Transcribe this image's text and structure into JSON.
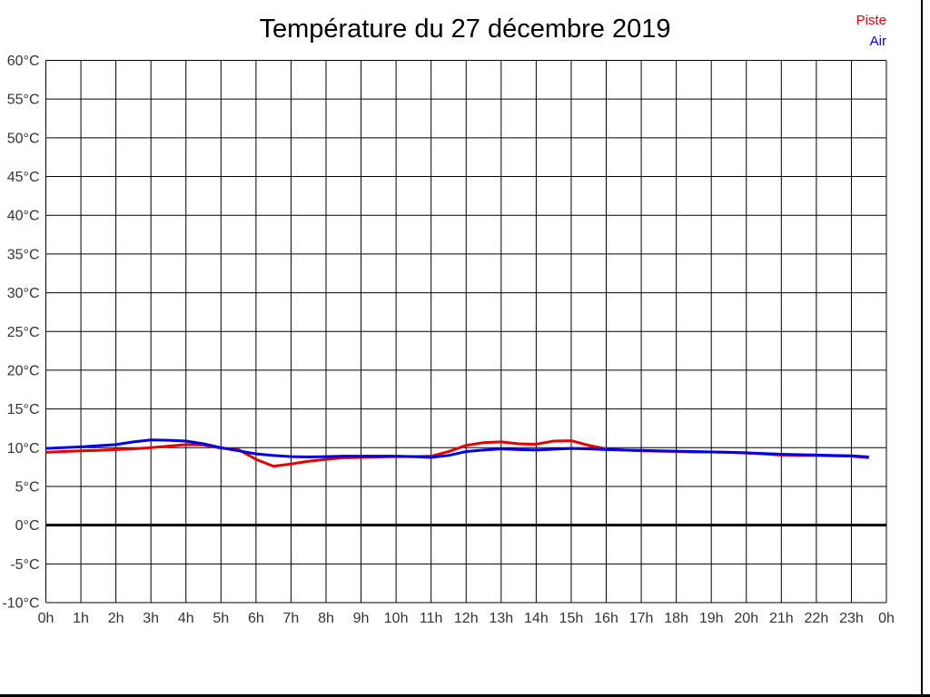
{
  "title": "Température du 27 décembre 2019",
  "legend": [
    {
      "label": "Piste",
      "color": "#e60000"
    },
    {
      "label": "Air",
      "color": "#0000e6"
    }
  ],
  "chart_data": {
    "type": "line",
    "title": "Température du 27 décembre 2019",
    "xlabel": "",
    "ylabel": "",
    "grid": true,
    "legend_position": "top-right",
    "xlim": [
      0,
      24
    ],
    "ylim": [
      -10,
      60
    ],
    "y_step": 5,
    "zero_line_bold": true,
    "x_tick_labels": [
      "0h",
      "1h",
      "2h",
      "3h",
      "4h",
      "5h",
      "6h",
      "7h",
      "8h",
      "9h",
      "10h",
      "11h",
      "12h",
      "13h",
      "14h",
      "15h",
      "16h",
      "17h",
      "18h",
      "19h",
      "20h",
      "21h",
      "22h",
      "23h",
      "0h"
    ],
    "y_tick_labels": [
      "60°C",
      "55°C",
      "50°C",
      "45°C",
      "40°C",
      "35°C",
      "30°C",
      "25°C",
      "20°C",
      "15°C",
      "10°C",
      "5°C",
      "0°C",
      "-5°C",
      "-10°C"
    ],
    "x": [
      0,
      0.5,
      1,
      1.5,
      2,
      2.5,
      3,
      3.5,
      4,
      4.5,
      5,
      5.5,
      6,
      6.5,
      7,
      7.5,
      8,
      8.5,
      9,
      9.5,
      10,
      10.5,
      11,
      11.5,
      12,
      12.5,
      13,
      13.5,
      14,
      14.5,
      15,
      15.5,
      16,
      16.5,
      17,
      17.5,
      18,
      18.5,
      19,
      19.5,
      20,
      20.5,
      21,
      21.5,
      22,
      22.5,
      23,
      23.5
    ],
    "series": [
      {
        "name": "Piste",
        "color": "#e60000",
        "values": [
          9.4,
          9.5,
          9.6,
          9.65,
          9.75,
          9.85,
          10.0,
          10.2,
          10.4,
          10.35,
          9.95,
          9.75,
          8.5,
          7.6,
          7.9,
          8.25,
          8.5,
          8.7,
          8.75,
          8.8,
          8.85,
          8.85,
          8.9,
          9.5,
          10.3,
          10.65,
          10.75,
          10.5,
          10.45,
          10.85,
          10.9,
          10.3,
          9.85,
          9.7,
          9.6,
          9.55,
          9.5,
          9.45,
          9.45,
          9.4,
          9.3,
          9.2,
          9.05,
          9.0,
          9.0,
          8.95,
          8.9,
          8.7
        ]
      },
      {
        "name": "Air",
        "color": "#0000e6",
        "values": [
          9.9,
          10.0,
          10.1,
          10.25,
          10.4,
          10.75,
          11.0,
          10.95,
          10.85,
          10.5,
          10.0,
          9.6,
          9.2,
          9.0,
          8.85,
          8.8,
          8.85,
          8.9,
          8.9,
          8.9,
          8.9,
          8.85,
          8.75,
          9.0,
          9.5,
          9.7,
          9.85,
          9.75,
          9.7,
          9.8,
          9.9,
          9.85,
          9.75,
          9.7,
          9.65,
          9.6,
          9.55,
          9.5,
          9.45,
          9.4,
          9.35,
          9.25,
          9.15,
          9.1,
          9.05,
          9.0,
          8.95,
          8.8
        ]
      }
    ]
  }
}
